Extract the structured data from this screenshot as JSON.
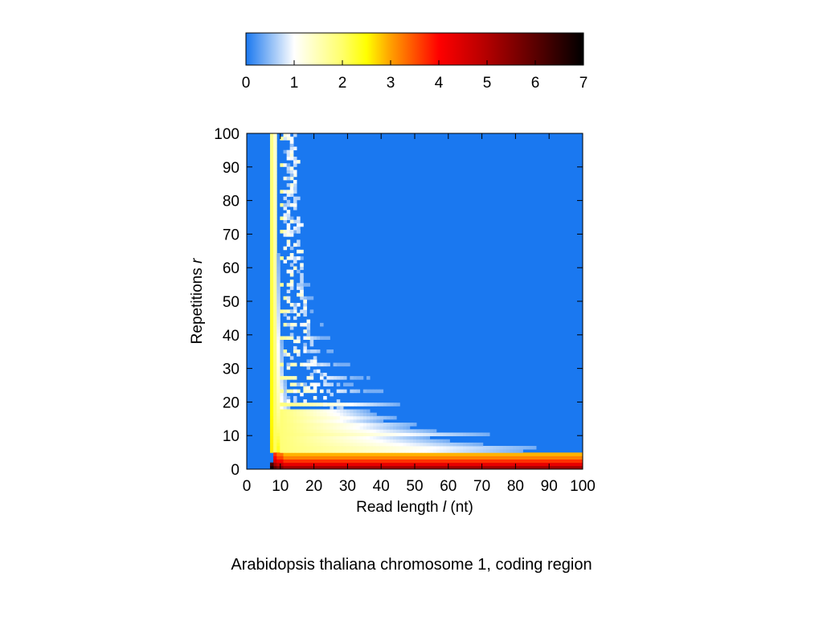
{
  "caption": "Arabidopsis thaliana chromosome 1, coding region",
  "colorbar": {
    "ticks": [
      "0",
      "1",
      "2",
      "3",
      "4",
      "5",
      "6",
      "7"
    ],
    "range": [
      0,
      7
    ],
    "stops": [
      {
        "value": 0,
        "color": "#1a78f0"
      },
      {
        "value": 0.5,
        "color": "#8ebcf6"
      },
      {
        "value": 1,
        "color": "#ffffff"
      },
      {
        "value": 2,
        "color": "#ffff6a"
      },
      {
        "value": 2.5,
        "color": "#ffff00"
      },
      {
        "value": 3,
        "color": "#ffa000"
      },
      {
        "value": 4,
        "color": "#ff0000"
      },
      {
        "value": 5,
        "color": "#b20000"
      },
      {
        "value": 6,
        "color": "#5a0000"
      },
      {
        "value": 7,
        "color": "#000000"
      }
    ]
  },
  "chart_data": {
    "type": "heatmap",
    "title": "",
    "xlabel_main": "Read length ",
    "xlabel_var": "l",
    "xlabel_unit": " (nt)",
    "ylabel_main": "Repetitions ",
    "ylabel_var": "r",
    "xlim": [
      0,
      100
    ],
    "ylim": [
      0,
      100
    ],
    "xticks": [
      0,
      10,
      20,
      30,
      40,
      50,
      60,
      70,
      80,
      90,
      100
    ],
    "yticks": [
      0,
      10,
      20,
      30,
      40,
      50,
      60,
      70,
      80,
      90,
      100
    ],
    "background_value": 0,
    "description_of_values": "log10 count per (l, r) cell",
    "vertical_band": {
      "l_min": 7,
      "l_max": 8,
      "value_start": 2.4,
      "value_end": 1.6
    },
    "bottom_rows": [
      {
        "r": 0,
        "l_from": 8,
        "value": 5.2
      },
      {
        "r": 1,
        "l_from": 8,
        "value": 4.3
      },
      {
        "r": 2,
        "l_from": 8,
        "value": 3.7
      },
      {
        "r": 3,
        "l_from": 8,
        "value": 3.2
      },
      {
        "r": 4,
        "l_from": 8,
        "value": 2.9
      }
    ],
    "streaks": [
      {
        "r": 5,
        "l_end": 82
      },
      {
        "r": 6,
        "l_end": 86
      },
      {
        "r": 7,
        "l_end": 70
      },
      {
        "r": 8,
        "l_end": 60
      },
      {
        "r": 9,
        "l_end": 54
      },
      {
        "r": 10,
        "l_end": 72
      },
      {
        "r": 11,
        "l_end": 56
      },
      {
        "r": 12,
        "l_end": 48
      },
      {
        "r": 13,
        "l_end": 50
      },
      {
        "r": 14,
        "l_end": 40
      },
      {
        "r": 15,
        "l_end": 44
      },
      {
        "r": 16,
        "l_end": 38
      },
      {
        "r": 17,
        "l_end": 36
      },
      {
        "r": 19,
        "l_end": 45
      },
      {
        "r": 23,
        "l_end": 40
      },
      {
        "r": 25,
        "l_end": 32
      },
      {
        "r": 27,
        "l_end": 36
      },
      {
        "r": 31,
        "l_end": 30
      },
      {
        "r": 35,
        "l_end": 25
      },
      {
        "r": 39,
        "l_end": 24
      },
      {
        "r": 43,
        "l_end": 22
      },
      {
        "r": 47,
        "l_end": 20
      },
      {
        "r": 51,
        "l_end": 19
      },
      {
        "r": 55,
        "l_end": 18
      },
      {
        "r": 59,
        "l_end": 16
      },
      {
        "r": 63,
        "l_end": 16
      },
      {
        "r": 67,
        "l_end": 14
      },
      {
        "r": 71,
        "l_end": 14
      },
      {
        "r": 75,
        "l_end": 13
      },
      {
        "r": 79,
        "l_end": 13
      },
      {
        "r": 83,
        "l_end": 12
      },
      {
        "r": 87,
        "l_end": 12
      },
      {
        "r": 91,
        "l_end": 12
      },
      {
        "r": 95,
        "l_end": 11
      },
      {
        "r": 99,
        "l_end": 11
      }
    ]
  }
}
